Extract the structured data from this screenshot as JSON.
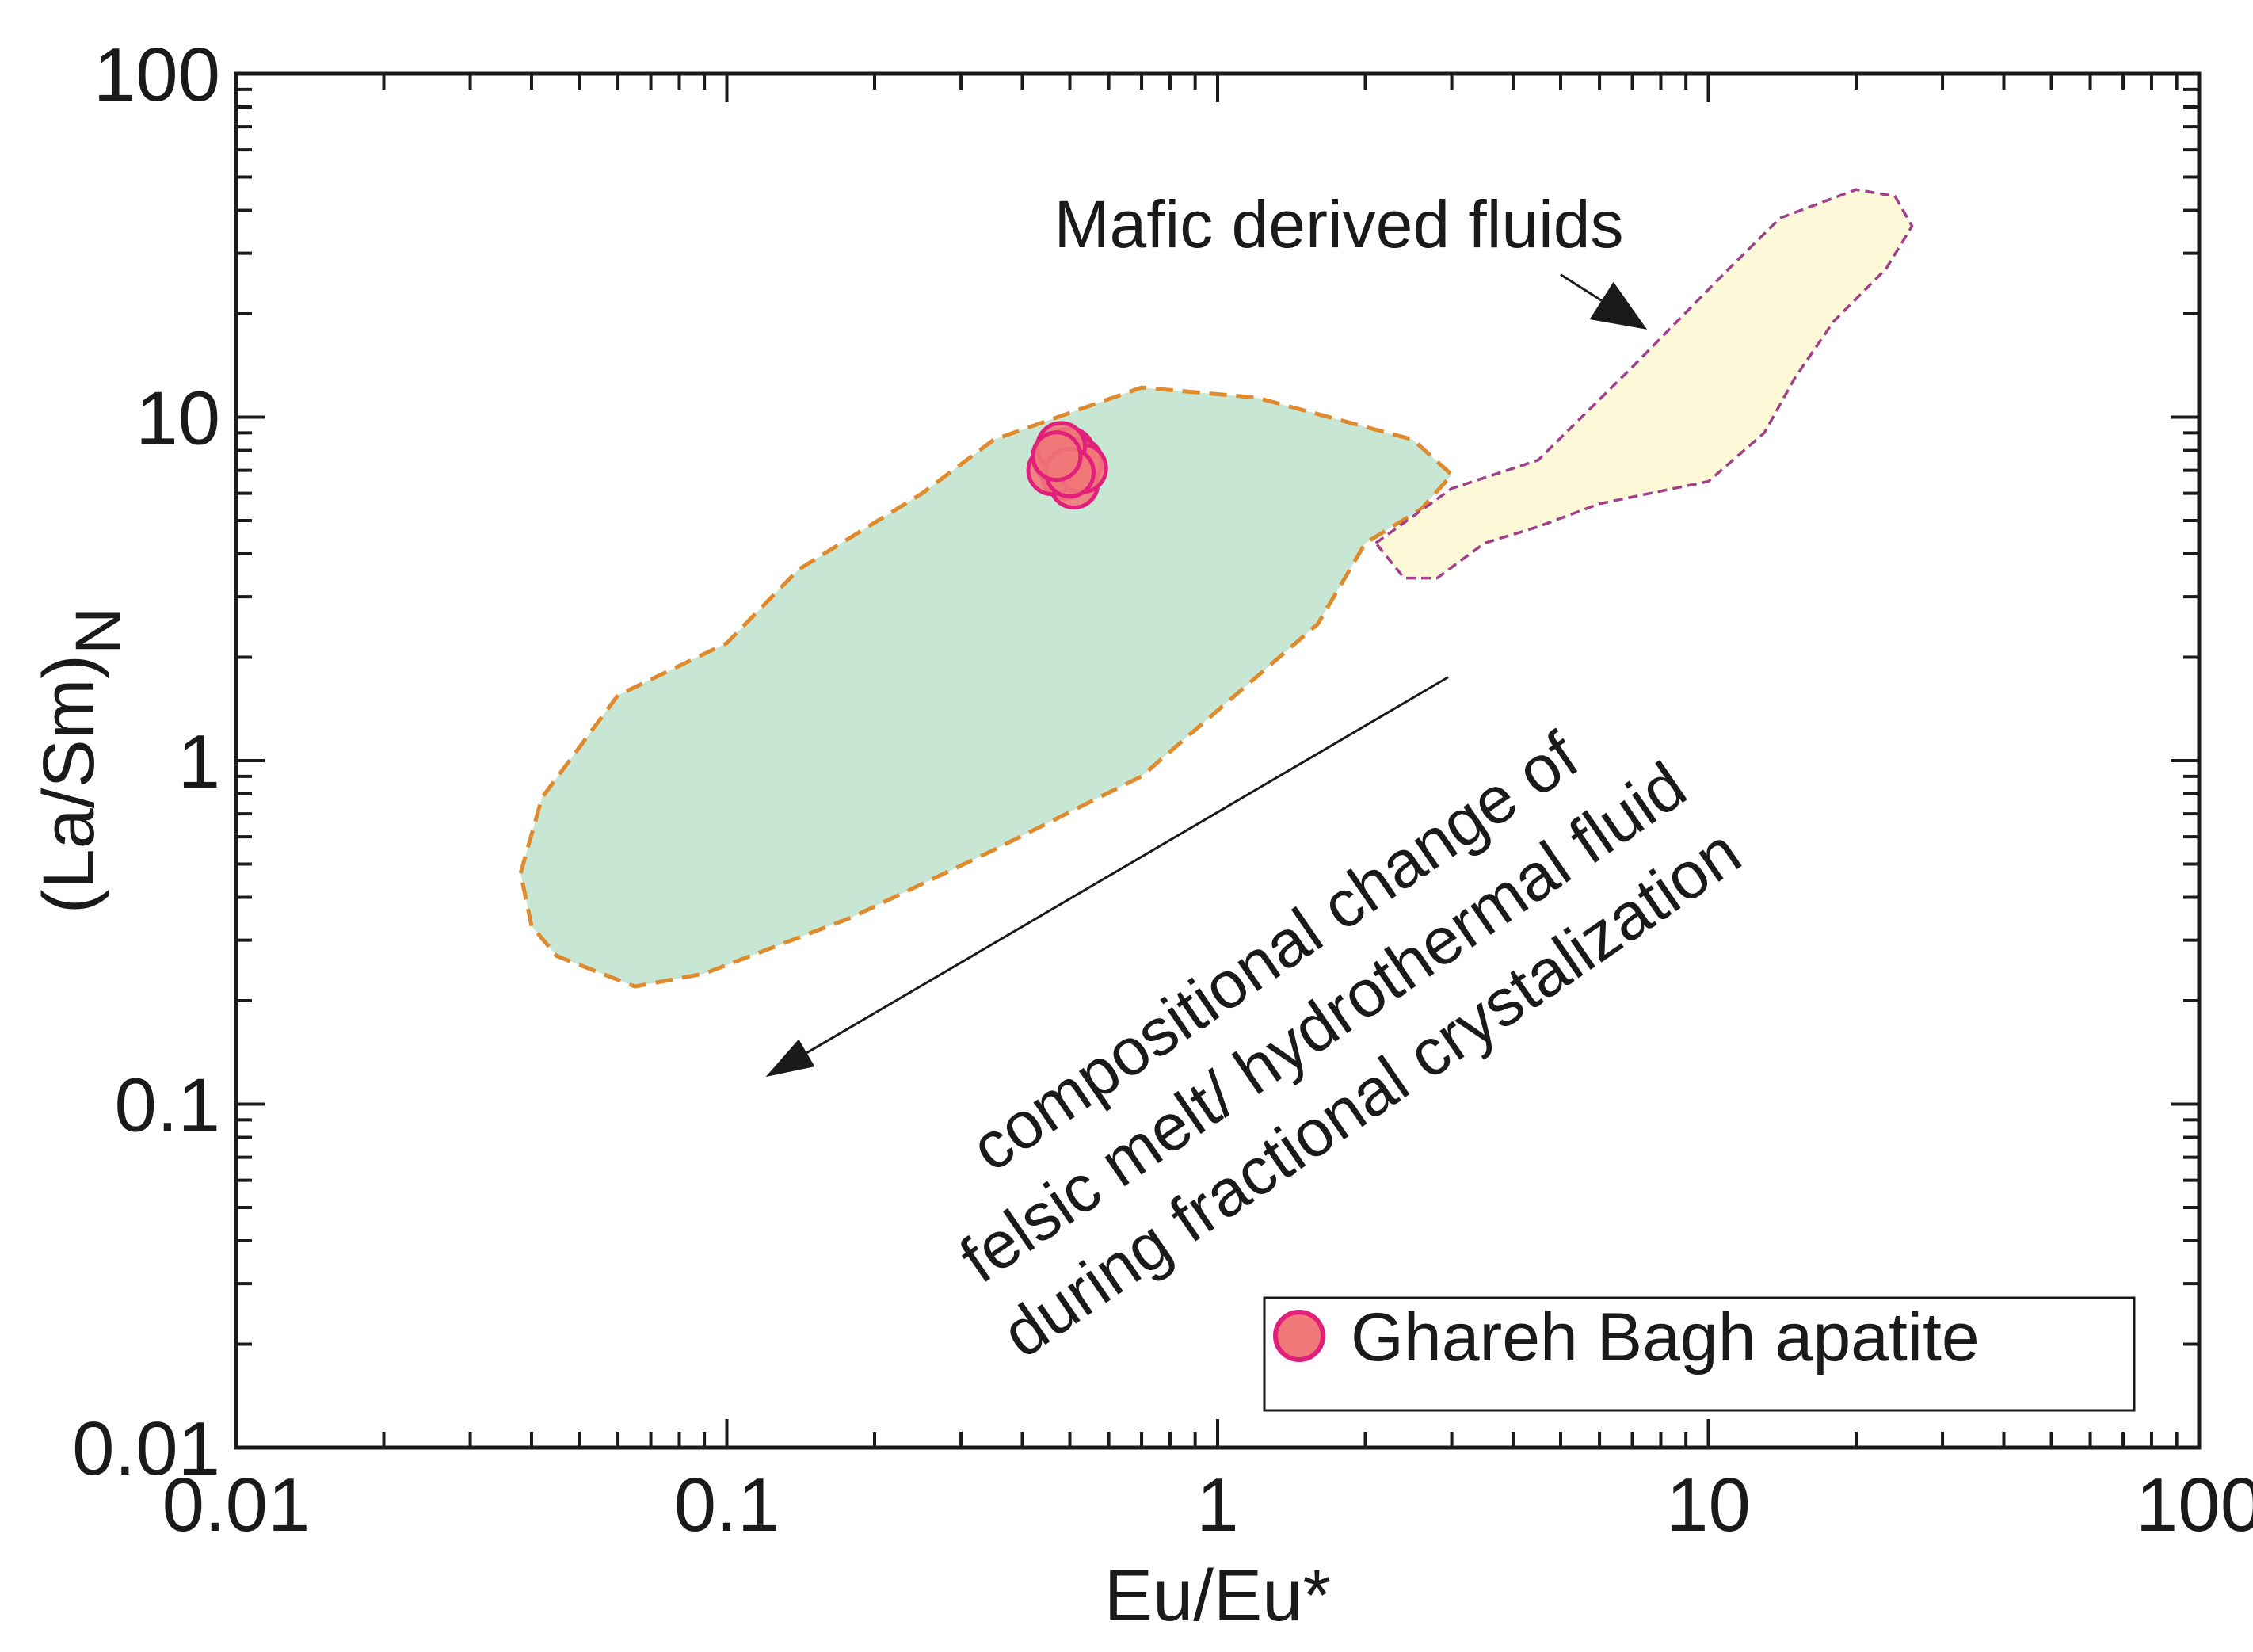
{
  "chart_data": {
    "type": "scatter",
    "title": "",
    "xlabel": "Eu/Eu*",
    "ylabel_main": "(La/Sm)",
    "ylabel_sub": "N",
    "x_scale": "log",
    "y_scale": "log",
    "xlim": [
      0.01,
      100
    ],
    "ylim": [
      0.01,
      100
    ],
    "x_ticks": [
      {
        "value": 0.01,
        "label": "0.01"
      },
      {
        "value": 0.1,
        "label": "0.1"
      },
      {
        "value": 1,
        "label": "1"
      },
      {
        "value": 10,
        "label": "10"
      },
      {
        "value": 100,
        "label": "100"
      }
    ],
    "y_ticks": [
      {
        "value": 0.01,
        "label": "0.01"
      },
      {
        "value": 0.1,
        "label": "0.1"
      },
      {
        "value": 1,
        "label": "1"
      },
      {
        "value": 10,
        "label": "10"
      },
      {
        "value": 100,
        "label": "100"
      }
    ],
    "grid": false,
    "legend_position": "bottom-right",
    "series": [
      {
        "name": "Ghareh Bagh apatite",
        "marker": "circle",
        "fill": "#f07878",
        "stroke": "#e0207a",
        "points": [
          {
            "x": 0.47,
            "y": 7.6
          },
          {
            "x": 0.5,
            "y": 7.9
          },
          {
            "x": 0.52,
            "y": 7.4
          },
          {
            "x": 0.49,
            "y": 6.8
          },
          {
            "x": 0.51,
            "y": 6.4
          },
          {
            "x": 0.46,
            "y": 7.0
          },
          {
            "x": 0.53,
            "y": 7.1
          },
          {
            "x": 0.48,
            "y": 8.2
          },
          {
            "x": 0.5,
            "y": 6.9
          },
          {
            "x": 0.47,
            "y": 7.7
          }
        ]
      }
    ],
    "fields": [
      {
        "fill": "#c8e6d4",
        "stroke": "#e08a2e",
        "outline": [
          [
            0.038,
            0.47
          ],
          [
            0.042,
            0.78
          ],
          [
            0.06,
            1.55
          ],
          [
            0.1,
            2.2
          ],
          [
            0.14,
            3.6
          ],
          [
            0.25,
            6.0
          ],
          [
            0.35,
            8.6
          ],
          [
            0.7,
            12.2
          ],
          [
            1.2,
            11.4
          ],
          [
            2.5,
            8.6
          ],
          [
            3.0,
            6.8
          ],
          [
            2.6,
            5.4
          ],
          [
            2.0,
            4.3
          ],
          [
            1.6,
            2.5
          ],
          [
            1.0,
            1.4
          ],
          [
            0.7,
            0.9
          ],
          [
            0.35,
            0.55
          ],
          [
            0.18,
            0.35
          ],
          [
            0.09,
            0.24
          ],
          [
            0.065,
            0.22
          ],
          [
            0.045,
            0.27
          ],
          [
            0.04,
            0.33
          ]
        ]
      },
      {
        "fill": "#fdf8d8",
        "stroke": "#a0408a",
        "outline": [
          [
            2.1,
            4.3
          ],
          [
            3.0,
            6.2
          ],
          [
            4.5,
            7.5
          ],
          [
            7.0,
            14.0
          ],
          [
            11.0,
            27.0
          ],
          [
            14.0,
            38.0
          ],
          [
            20.0,
            46.0
          ],
          [
            24.0,
            44.0
          ],
          [
            26.0,
            36.0
          ],
          [
            23.0,
            27.0
          ],
          [
            18.0,
            19.0
          ],
          [
            15.0,
            13.0
          ],
          [
            13.0,
            9.0
          ],
          [
            10.0,
            6.5
          ],
          [
            6.0,
            5.6
          ],
          [
            4.5,
            4.8
          ],
          [
            3.5,
            4.3
          ],
          [
            2.8,
            3.4
          ],
          [
            2.4,
            3.4
          ]
        ]
      }
    ],
    "annotations": [
      {
        "text": "Mafic derived fluids"
      },
      {
        "lines": [
          "compositional change of",
          "felsic melt/ hydrothermal fluid",
          "during fractional crystalization"
        ]
      }
    ],
    "arrows": [
      {
        "from": [
          2.95,
          1.75
        ],
        "to": [
          0.12,
          0.12
        ]
      },
      {
        "from": [
          5.0,
          26.0
        ],
        "to": [
          7.5,
          18.0
        ]
      }
    ]
  }
}
